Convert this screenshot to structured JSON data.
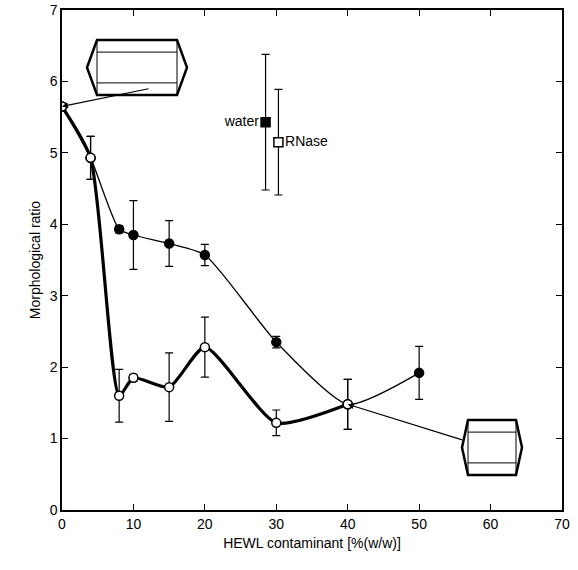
{
  "chart_data": {
    "type": "line",
    "x_label": "HEWL contaminant [%(w/w)]",
    "y_label": "Morphological ratio",
    "xlim": [
      0,
      70
    ],
    "xticks": [
      0,
      10,
      20,
      30,
      40,
      50,
      60,
      70
    ],
    "ylim": [
      0,
      7
    ],
    "yticks": [
      0,
      1,
      2,
      3,
      4,
      5,
      6,
      7
    ],
    "grid": false,
    "series": [
      {
        "x": [
          0,
          4,
          8,
          10,
          15,
          20,
          30,
          40,
          50
        ],
        "values": [
          5.65,
          4.93,
          3.93,
          3.85,
          3.73,
          3.57,
          2.35,
          1.48,
          1.92
        ],
        "error": [
          0,
          0.3,
          0.05,
          0.48,
          0.32,
          0.15,
          0.08,
          0.35,
          0.37
        ],
        "marker": "filled circle",
        "line_style": "thin",
        "color": "#000000"
      },
      {
        "x": [
          0,
          4,
          8,
          10,
          15,
          20,
          30,
          40
        ],
        "values": [
          5.65,
          4.93,
          1.6,
          1.85,
          1.72,
          2.28,
          1.22,
          1.48
        ],
        "error": [
          0,
          0.3,
          0.37,
          0.05,
          0.48,
          0.42,
          0.18,
          0.35
        ],
        "marker": "open circle",
        "line_style": "thick",
        "color": "#000000"
      },
      {
        "name": "water",
        "type": "scatter",
        "x": [
          28.5
        ],
        "values": [
          5.43
        ],
        "error": [
          0.95
        ],
        "marker": "filled square",
        "color": "#000000"
      },
      {
        "name": "RNase",
        "type": "scatter",
        "x": [
          30.3
        ],
        "values": [
          5.15
        ],
        "error": [
          0.74
        ],
        "marker": "open square",
        "color": "#000000"
      }
    ]
  }
}
